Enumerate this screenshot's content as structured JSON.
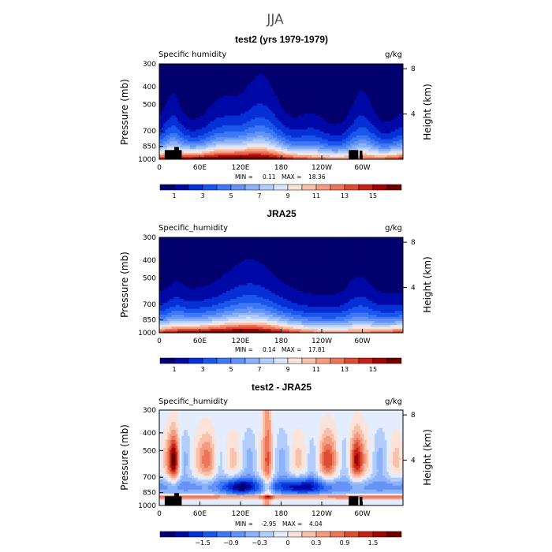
{
  "figure": {
    "title": "JJA"
  },
  "chart_data": [
    {
      "type": "heatmap",
      "title": "test2 (yrs 1979-1979)",
      "left_label": "Specific humidity",
      "right_label": "g/kg",
      "ylabel": "Pressure (mb)",
      "ylabel_right": "Height (km)",
      "xlabel": "",
      "x_ticks": [
        "0",
        "60E",
        "120E",
        "180",
        "120W",
        "60W"
      ],
      "y_ticks": [
        "300",
        "400",
        "500",
        "700",
        "850",
        "1000"
      ],
      "y_right_ticks": [
        "8",
        "4"
      ],
      "xlim": [
        0,
        360
      ],
      "ylim": [
        1000,
        300
      ],
      "min_label": "MIN =",
      "min_value": "0.11",
      "max_label": "MAX =",
      "max_value": "18.36",
      "colorbar_labels": [
        "1",
        "3",
        "5",
        "7",
        "9",
        "11",
        "13",
        "15"
      ],
      "colorbar_colors": [
        "#03006e",
        "#0008a6",
        "#0630d6",
        "#1a56ec",
        "#3d78f5",
        "#6593f7",
        "#8cb2fa",
        "#b3cdfb",
        "#d8e5fc",
        "#fbe3d9",
        "#f8c1ab",
        "#f39c80",
        "#ec7658",
        "#dd4d36",
        "#c42218",
        "#9e0604",
        "#6b0000"
      ],
      "colorbar_cmin": 0,
      "colorbar_cmax": 16,
      "field": "abs_test2",
      "show_topo": true
    },
    {
      "type": "heatmap",
      "title": "JRA25",
      "left_label": "Specific_humidity",
      "right_label": "g/kg",
      "ylabel": "Pressure (mb)",
      "ylabel_right": "Height (km)",
      "xlabel": "",
      "x_ticks": [
        "0",
        "60E",
        "120E",
        "180",
        "120W",
        "60W"
      ],
      "y_ticks": [
        "300",
        "400",
        "500",
        "700",
        "850",
        "1000"
      ],
      "y_right_ticks": [
        "8",
        "4"
      ],
      "xlim": [
        0,
        360
      ],
      "ylim": [
        1000,
        300
      ],
      "min_label": "MIN =",
      "min_value": "0.14",
      "max_label": "MAX =",
      "max_value": "17.81",
      "colorbar_labels": [
        "1",
        "3",
        "5",
        "7",
        "9",
        "11",
        "13",
        "15"
      ],
      "colorbar_colors": [
        "#03006e",
        "#0008a6",
        "#0630d6",
        "#1a56ec",
        "#3d78f5",
        "#6593f7",
        "#8cb2fa",
        "#b3cdfb",
        "#d8e5fc",
        "#fbe3d9",
        "#f8c1ab",
        "#f39c80",
        "#ec7658",
        "#dd4d36",
        "#c42218",
        "#9e0604",
        "#6b0000"
      ],
      "colorbar_cmin": 0,
      "colorbar_cmax": 16,
      "field": "abs_jra",
      "show_topo": false
    },
    {
      "type": "heatmap",
      "title": "test2 - JRA25",
      "left_label": "Specific_humidity",
      "right_label": "g/kg",
      "ylabel": "Pressure (mb)",
      "ylabel_right": "Height (km)",
      "xlabel": "",
      "x_ticks": [
        "0",
        "60E",
        "120E",
        "180",
        "120W",
        "60W"
      ],
      "y_ticks": [
        "300",
        "400",
        "500",
        "700",
        "850",
        "1000"
      ],
      "y_right_ticks": [
        "8",
        "4"
      ],
      "xlim": [
        0,
        360
      ],
      "ylim": [
        1000,
        300
      ],
      "min_label": "MIN =",
      "min_value": "-2.95",
      "max_label": "MAX =",
      "max_value": "4.04",
      "colorbar_labels": [
        "−1.5",
        "−0.9",
        "−0.3",
        "0",
        "0.3",
        "0.9",
        "1.5"
      ],
      "colorbar_colors": [
        "#03006e",
        "#0008a6",
        "#0630d6",
        "#1a56ec",
        "#3d78f5",
        "#6593f7",
        "#8cb2fa",
        "#b3cdfb",
        "#e4edfd",
        "#fbe3d9",
        "#f8c1ab",
        "#f39c80",
        "#ec7658",
        "#dd4d36",
        "#c42218",
        "#9e0604",
        "#6b0000"
      ],
      "colorbar_cmin": -2.0,
      "colorbar_cmax": 2.0,
      "field": "diff",
      "show_topo": true
    }
  ]
}
